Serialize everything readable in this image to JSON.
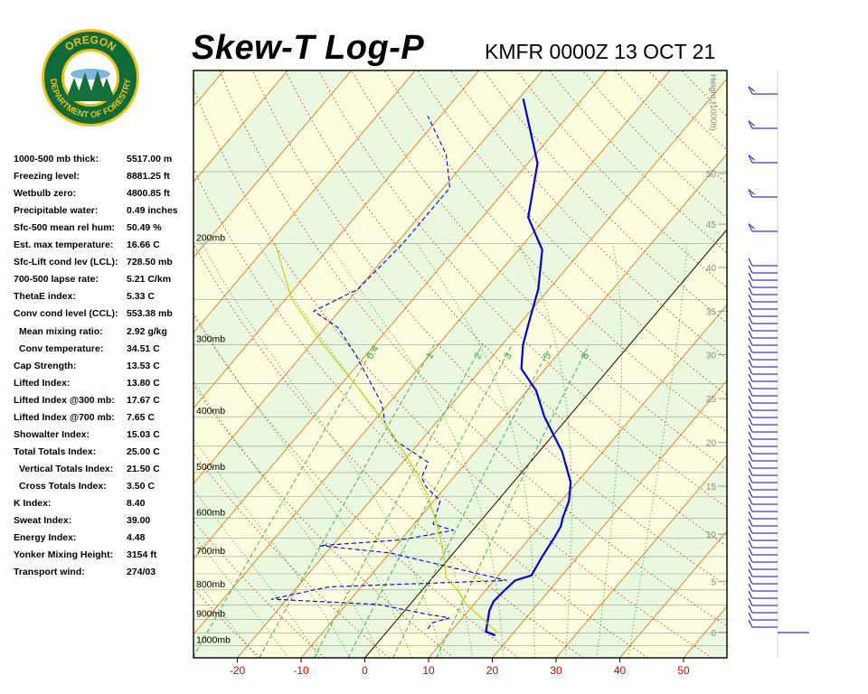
{
  "header": {
    "title": "Skew-T Log-P",
    "station_time": "KMFR 0000Z 13 OCT 21"
  },
  "logo": {
    "top_text": "OREGON",
    "bottom_text": "DEPARTMENT OF FORESTRY",
    "colors": {
      "ring": "#0f6b3a",
      "gold": "#e8c21a",
      "tree": "#16703c",
      "sky": "#ffffff"
    }
  },
  "indices": [
    {
      "label": "1000-500 mb thick:",
      "value": "5517.00 m",
      "indent": false
    },
    {
      "label": "Freezing level:",
      "value": "8881.25 ft",
      "indent": false
    },
    {
      "label": "Wetbulb zero:",
      "value": "4800.85 ft",
      "indent": false
    },
    {
      "label": "Precipitable water:",
      "value": "0.49 inches",
      "indent": false
    },
    {
      "label": "Sfc-500 mean rel hum:",
      "value": "50.49 %",
      "indent": false
    },
    {
      "label": "Est. max temperature:",
      "value": "16.66 C",
      "indent": false
    },
    {
      "label": "Sfc-Lift cond lev (LCL):",
      "value": "728.50 mb",
      "indent": false
    },
    {
      "label": "700-500 lapse rate:",
      "value": "5.21 C/km",
      "indent": false
    },
    {
      "label": "ThetaE index:",
      "value": "5.33 C",
      "indent": false
    },
    {
      "label": "Conv cond level (CCL):",
      "value": "553.38 mb",
      "indent": false
    },
    {
      "label": "Mean mixing ratio:",
      "value": "2.92 g/kg",
      "indent": true
    },
    {
      "label": "Conv temperature:",
      "value": "34.51 C",
      "indent": true
    },
    {
      "label": "Cap Strength:",
      "value": "13.53 C",
      "indent": false
    },
    {
      "label": "Lifted Index:",
      "value": "13.80 C",
      "indent": false
    },
    {
      "label": "Lifted Index @300 mb:",
      "value": "17.67 C",
      "indent": false
    },
    {
      "label": "Lifted Index @700 mb:",
      "value": "7.65 C",
      "indent": false
    },
    {
      "label": "Showalter Index:",
      "value": "15.03 C",
      "indent": false
    },
    {
      "label": "Total Totals Index:",
      "value": "25.00 C",
      "indent": false
    },
    {
      "label": "Vertical Totals Index:",
      "value": "21.50 C",
      "indent": true
    },
    {
      "label": "Cross Totals Index:",
      "value": "3.50 C",
      "indent": true
    },
    {
      "label": "K Index:",
      "value": "8.40",
      "indent": false
    },
    {
      "label": "Sweat Index:",
      "value": "39.00",
      "indent": false
    },
    {
      "label": "Energy Index:",
      "value": "4.48",
      "indent": false
    },
    {
      "label": "Yonker Mixing Height:",
      "value": "3154 ft",
      "indent": false
    },
    {
      "label": "Transport wind:",
      "value": "274/03",
      "indent": false
    }
  ],
  "chart_data": {
    "type": "line",
    "title": "Skew-T Log-P",
    "x_axis": {
      "label": "",
      "unit": "C",
      "ticks": [
        -20,
        -10,
        0,
        10,
        20,
        30,
        40,
        50
      ],
      "color": "#cc0000"
    },
    "y_axis": {
      "scale": "log",
      "range_mb": [
        1050,
        100
      ],
      "pressure_labels": [
        "200mb",
        "300mb",
        "400mb",
        "500mb",
        "600mb",
        "700mb",
        "800mb",
        "900mb",
        "1000mb"
      ],
      "pressure_values": [
        200,
        300,
        400,
        500,
        600,
        700,
        800,
        900,
        1000
      ]
    },
    "height_axis": {
      "label": "Height (1000ft)",
      "ticks": [
        {
          "label": "50",
          "mb": 151
        },
        {
          "label": "45",
          "mb": 185
        },
        {
          "label": "40",
          "mb": 220
        },
        {
          "label": "35",
          "mb": 262
        },
        {
          "label": "30",
          "mb": 312
        },
        {
          "label": "25",
          "mb": 372
        },
        {
          "label": "20",
          "mb": 443
        },
        {
          "label": "15",
          "mb": 528
        },
        {
          "label": "10",
          "mb": 640
        },
        {
          "label": "5",
          "mb": 773
        },
        {
          "label": "0",
          "mb": 948
        }
      ]
    },
    "mixing_ratio_labels": [
      "0.4",
      "1",
      "2",
      "3",
      "5",
      "8"
    ],
    "series": [
      {
        "role": "temperature",
        "color": "#0000cc",
        "style": "solid",
        "points": [
          {
            "p": 960,
            "t": 17.5
          },
          {
            "p": 945,
            "t": 15.5
          },
          {
            "p": 910,
            "t": 14.5
          },
          {
            "p": 870,
            "t": 13.3
          },
          {
            "p": 838,
            "t": 12.7
          },
          {
            "p": 808,
            "t": 12.9
          },
          {
            "p": 770,
            "t": 13.3
          },
          {
            "p": 755,
            "t": 15.2
          },
          {
            "p": 700,
            "t": 14.4
          },
          {
            "p": 650,
            "t": 13.8
          },
          {
            "p": 620,
            "t": 13.3
          },
          {
            "p": 600,
            "t": 12.5
          },
          {
            "p": 560,
            "t": 11.2
          },
          {
            "p": 520,
            "t": 9.0
          },
          {
            "p": 460,
            "t": 3.6
          },
          {
            "p": 400,
            "t": -3.8
          },
          {
            "p": 360,
            "t": -8.6
          },
          {
            "p": 330,
            "t": -13.8
          },
          {
            "p": 300,
            "t": -16.7
          },
          {
            "p": 276,
            "t": -18.6
          },
          {
            "p": 240,
            "t": -21.7
          },
          {
            "p": 205,
            "t": -26.3
          },
          {
            "p": 180,
            "t": -32.8
          },
          {
            "p": 145,
            "t": -38.5
          },
          {
            "p": 112,
            "t": -49.3
          }
        ]
      },
      {
        "role": "dewpoint",
        "color": "#0000cc",
        "style": "dashed",
        "points": [
          {
            "p": 935,
            "t": 6.0
          },
          {
            "p": 912,
            "t": 6.0
          },
          {
            "p": 895,
            "t": 8.0
          },
          {
            "p": 880,
            "t": 3.5
          },
          {
            "p": 848,
            "t": -5.0
          },
          {
            "p": 830,
            "t": -22.5
          },
          {
            "p": 790,
            "t": -15.0
          },
          {
            "p": 770,
            "t": 12.0
          },
          {
            "p": 690,
            "t": -10.0
          },
          {
            "p": 670,
            "t": -22.0
          },
          {
            "p": 655,
            "t": -10.0
          },
          {
            "p": 630,
            "t": -3.0
          },
          {
            "p": 615,
            "t": -7.0
          },
          {
            "p": 560,
            "t": -9.0
          },
          {
            "p": 530,
            "t": -13.0
          },
          {
            "p": 510,
            "t": -15.0
          },
          {
            "p": 480,
            "t": -16.0
          },
          {
            "p": 440,
            "t": -24.0
          },
          {
            "p": 410,
            "t": -28.0
          },
          {
            "p": 380,
            "t": -31.0
          },
          {
            "p": 340,
            "t": -37.0
          },
          {
            "p": 310,
            "t": -42.0
          },
          {
            "p": 280,
            "t": -48.0
          },
          {
            "p": 262,
            "t": -54.0
          },
          {
            "p": 240,
            "t": -50.0
          },
          {
            "p": 200,
            "t": -49.0
          },
          {
            "p": 160,
            "t": -49.0
          },
          {
            "p": 140,
            "t": -54.0
          },
          {
            "p": 120,
            "t": -62.0
          }
        ]
      },
      {
        "role": "parcel",
        "color": "#cccc00",
        "style": "solid",
        "points": [
          {
            "p": 950,
            "t": 17.5
          },
          {
            "p": 900,
            "t": 13.5
          },
          {
            "p": 850,
            "t": 9.0
          },
          {
            "p": 800,
            "t": 5.5
          },
          {
            "p": 760,
            "t": 2.0
          },
          {
            "p": 728,
            "t": 0.5
          },
          {
            "p": 650,
            "t": -4.0
          },
          {
            "p": 600,
            "t": -7.5
          },
          {
            "p": 550,
            "t": -11.5
          },
          {
            "p": 500,
            "t": -16.5
          },
          {
            "p": 450,
            "t": -22.5
          },
          {
            "p": 400,
            "t": -29.5
          },
          {
            "p": 350,
            "t": -38.0
          },
          {
            "p": 300,
            "t": -48.0
          },
          {
            "p": 250,
            "t": -59.0
          },
          {
            "p": 200,
            "t": -69.0
          }
        ]
      }
    ],
    "legend": "none",
    "grid": true
  }
}
